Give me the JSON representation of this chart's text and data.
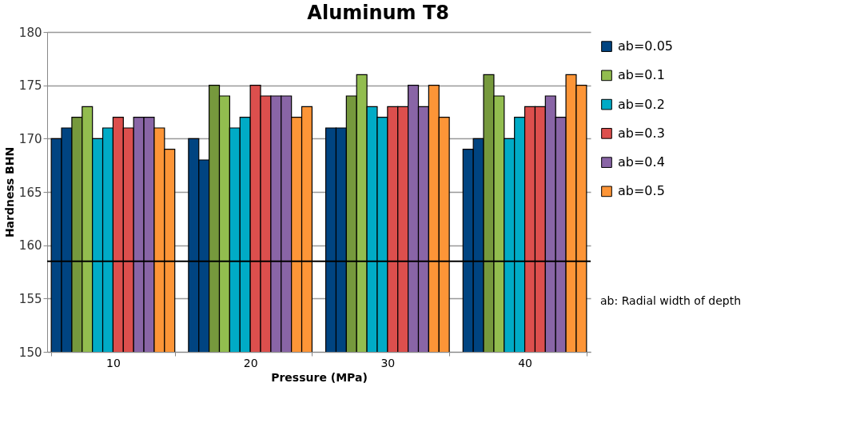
{
  "chart_data": {
    "type": "bar",
    "title": "Aluminum T8",
    "xlabel": "Pressure (MPa)",
    "ylabel": "Hardness BHN",
    "categories": [
      "10",
      "20",
      "30",
      "40"
    ],
    "series": [
      {
        "name": "ab=0.05",
        "color": "#004481",
        "values": [
          170,
          170,
          171,
          169
        ]
      },
      {
        "color": "#004481",
        "values": [
          171,
          168,
          171,
          170
        ]
      },
      {
        "color": "#76993d",
        "values": [
          172,
          175,
          174,
          176
        ]
      },
      {
        "name": "ab=0.1",
        "color": "#92bd4f",
        "values": [
          173,
          174,
          176,
          174
        ]
      },
      {
        "name": "ab=0.2",
        "color": "#00abc6",
        "values": [
          170,
          171,
          173,
          170
        ]
      },
      {
        "color": "#00abc6",
        "values": [
          171,
          172,
          172,
          172
        ]
      },
      {
        "name": "ab=0.3",
        "color": "#dc4f4d",
        "values": [
          172,
          175,
          173,
          173
        ]
      },
      {
        "color": "#dc4f4d",
        "values": [
          171,
          174,
          173,
          173
        ]
      },
      {
        "name": "ab=0.4",
        "color": "#8965a6",
        "values": [
          172,
          174,
          175,
          174
        ]
      },
      {
        "color": "#8965a6",
        "values": [
          172,
          174,
          173,
          172
        ]
      },
      {
        "name": "ab=0.5",
        "color": "#fd9537",
        "values": [
          171,
          172,
          175,
          176
        ]
      },
      {
        "color": "#fd9537",
        "values": [
          169,
          173,
          172,
          175
        ]
      }
    ],
    "ylim": [
      150,
      180
    ],
    "yticks": [
      150,
      155,
      160,
      165,
      170,
      175,
      180
    ],
    "grid": "y",
    "legend": "right",
    "ref_lines": [
      {
        "axis": "y",
        "value": 158.5,
        "color": "#000000"
      }
    ],
    "annotations": [
      "ab: Radial width of depth"
    ]
  }
}
